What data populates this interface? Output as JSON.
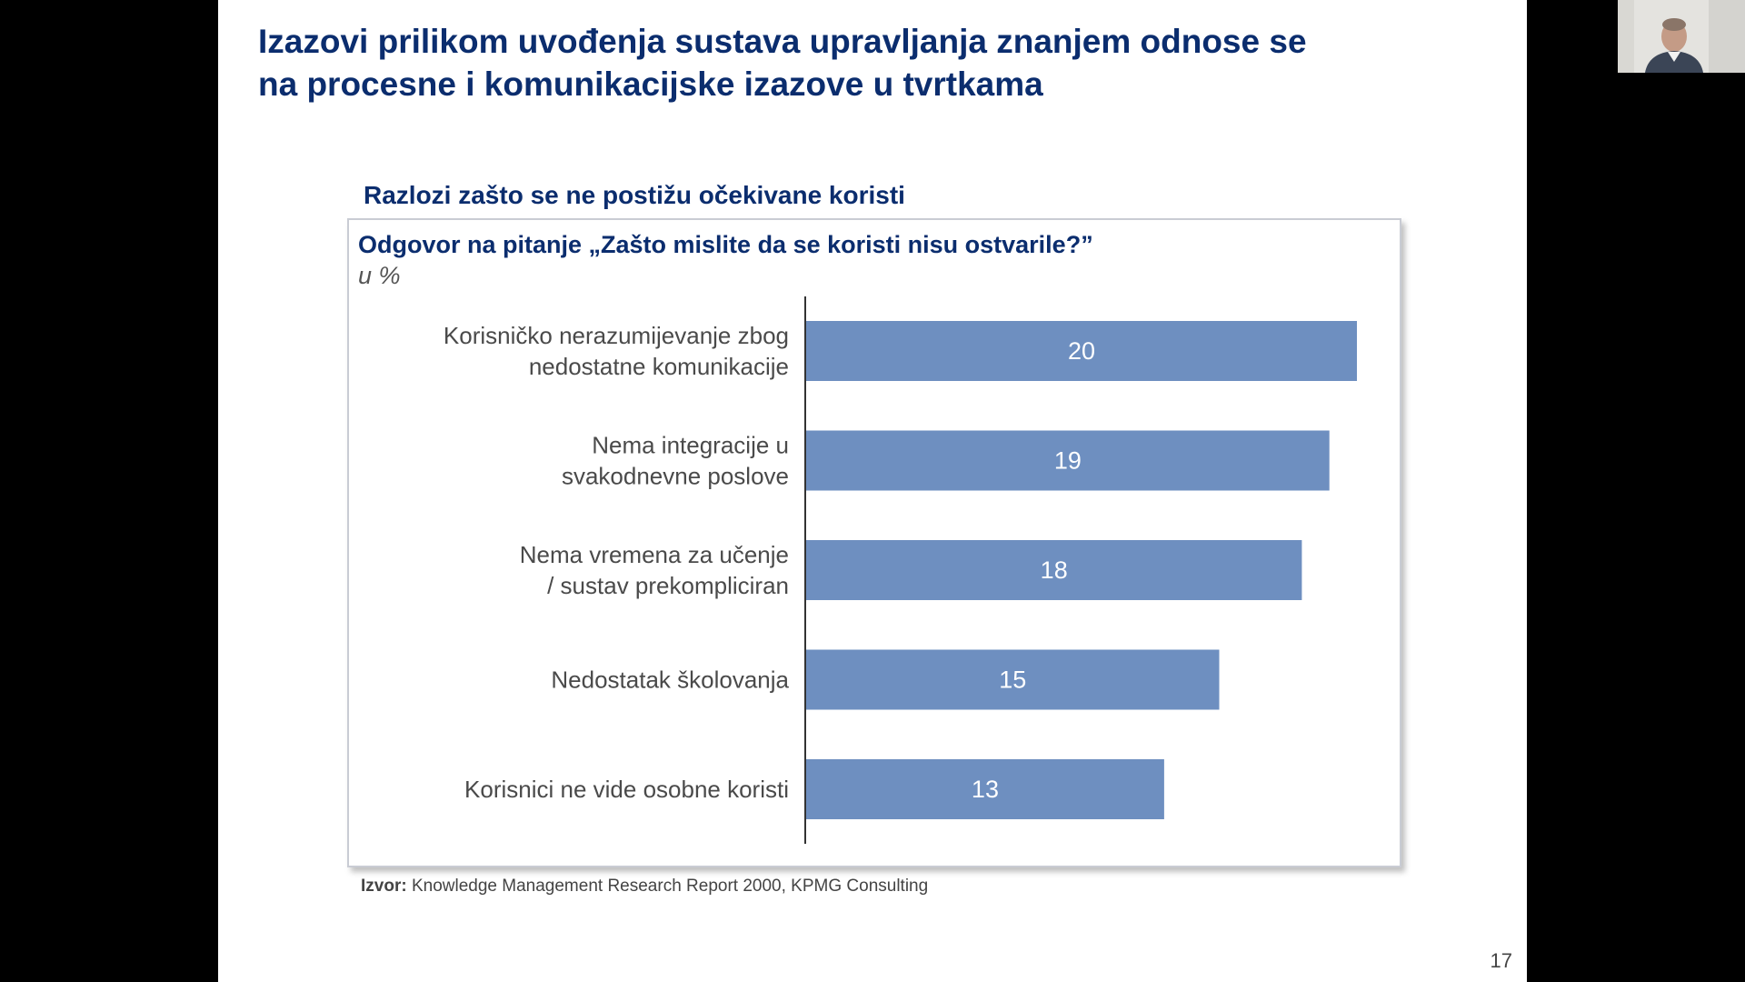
{
  "slide": {
    "title_line1": "Izazovi prilikom uvođenja sustava upravljanja znanjem odnose se",
    "title_line2": "na procesne i komunikacijske izazove u tvrtkama",
    "subtitle": "Razlozi zašto se ne postižu očekivane koristi",
    "source_label": "Izvor:",
    "source_text": "Knowledge Management Research Report 2000, KPMG Consulting",
    "page_number": "17"
  },
  "chart_data": {
    "type": "bar",
    "orientation": "horizontal",
    "title": "Odgovor na pitanje „Zašto mislite da se koristi nisu ostvarile?”",
    "unit": "u %",
    "categories": [
      [
        "Korisničko nerazumijevanje zbog",
        "nedostatne komunikacije"
      ],
      [
        "Nema integracije u",
        "svakodnevne poslove"
      ],
      [
        "Nema vremena za učenje",
        "/ sustav prekompliciran"
      ],
      [
        "Nedostatak školovanja"
      ],
      [
        "Korisnici ne vide osobne koristi"
      ]
    ],
    "values": [
      20,
      19,
      18,
      15,
      13
    ],
    "bar_color": "#6e8fc0",
    "grid": false,
    "legend": "none"
  },
  "colors": {
    "title": "#0b2d6e",
    "background": "#ffffff",
    "letterbox": "#000000"
  },
  "webcam": {
    "icon": "person-video-thumbnail"
  }
}
